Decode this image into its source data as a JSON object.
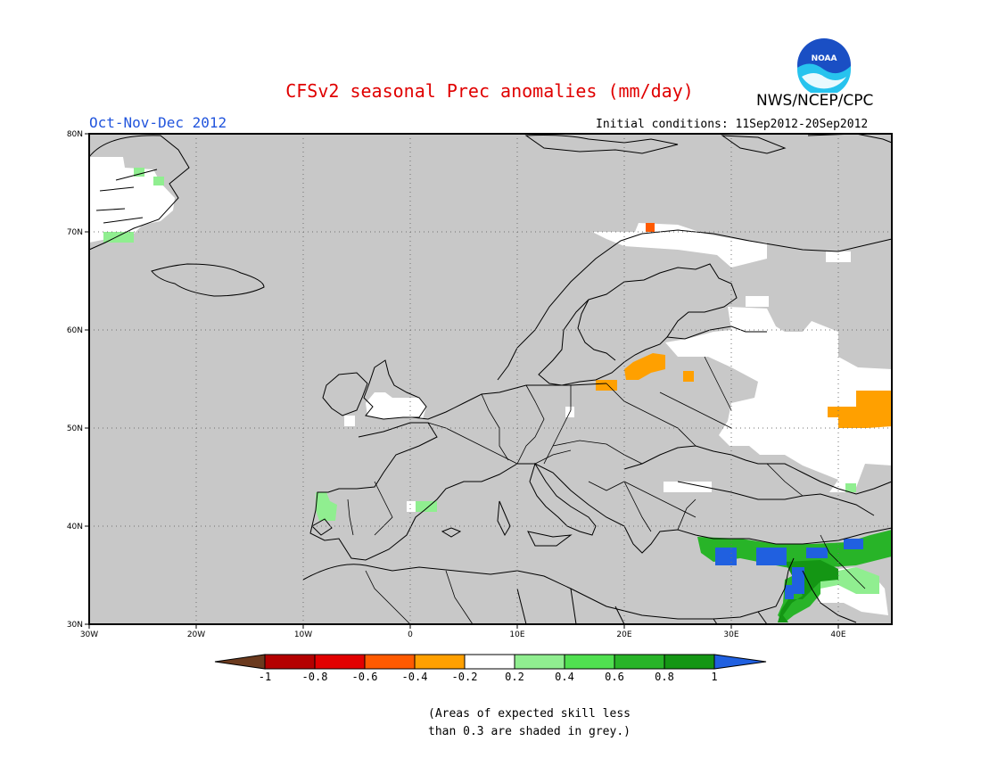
{
  "header": {
    "title": "CFSv2 seasonal Prec anomalies (mm/day)",
    "period": "Oct-Nov-Dec 2012",
    "initial_conditions": "Initial conditions: 11Sep2012-20Sep2012",
    "agency": "NWS/NCEP/CPC",
    "logo_text": "NOAA"
  },
  "map": {
    "lon_ticks": [
      "30W",
      "20W",
      "10W",
      "0",
      "10E",
      "20E",
      "30E",
      "40E"
    ],
    "lat_ticks": [
      "80N",
      "70N",
      "60N",
      "50N",
      "40N",
      "30N"
    ],
    "lon_range": [
      -30,
      45
    ],
    "lat_range": [
      30,
      80
    ]
  },
  "legend": {
    "labels": [
      "-1",
      "-0.8",
      "-0.6",
      "-0.4",
      "-0.2",
      "0.2",
      "0.4",
      "0.6",
      "0.8",
      "1"
    ],
    "colors": [
      "#6b3a1e",
      "#b40000",
      "#e20000",
      "#ff5a00",
      "#ffa000",
      "#ffffff",
      "#90ee90",
      "#50e050",
      "#28b428",
      "#149614",
      "#2060e0"
    ]
  },
  "note": {
    "line1": "(Areas of expected skill less",
    "line2": "than 0.3 are shaded in grey.)"
  }
}
